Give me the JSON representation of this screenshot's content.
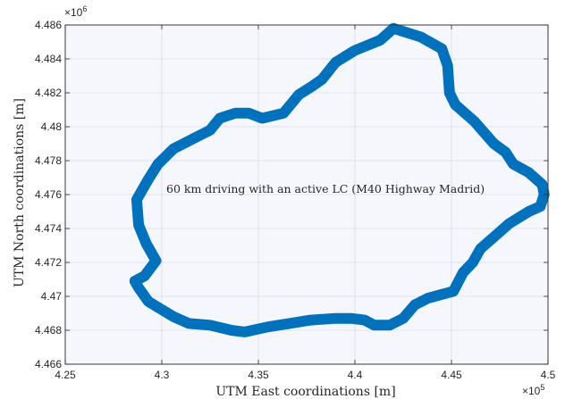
{
  "chart_data": {
    "type": "line",
    "title": "",
    "xlabel": "UTM East coordinations [m]",
    "ylabel": "UTM North coordinations [m]",
    "xlim": [
      425000,
      450000
    ],
    "ylim": [
      4466000,
      4486000
    ],
    "x_ticks": [
      425000,
      430000,
      435000,
      440000,
      445000,
      450000
    ],
    "y_ticks": [
      4466000,
      4468000,
      4470000,
      4472000,
      4474000,
      4476000,
      4478000,
      4480000,
      4482000,
      4484000,
      4486000
    ],
    "x_tick_labels": [
      "4.25",
      "4.3",
      "4.35",
      "4.4",
      "4.45",
      "4.5"
    ],
    "y_tick_labels": [
      "4.466",
      "4.468",
      "4.47",
      "4.472",
      "4.474",
      "4.476",
      "4.478",
      "4.48",
      "4.482",
      "4.484",
      "4.486"
    ],
    "x_exponent": {
      "base": "×10",
      "power": "5"
    },
    "y_exponent": {
      "base": "×10",
      "power": "6"
    },
    "grid": true,
    "annotation": "60 km driving with an active LC (M40 Highway Madrid)",
    "colors": {
      "line": "#0072BD",
      "plot_background": "#F5F7FC",
      "grid": "#DDDDDD",
      "axes": "#262626"
    },
    "series": [
      {
        "x": [
          442000,
          443400,
          444500,
          444800,
          444900,
          445200,
          446200,
          447200,
          447800,
          448200,
          449000,
          449700,
          449800,
          449600,
          449000,
          448000,
          447200,
          446500,
          446100,
          445600,
          445100,
          443800,
          443100,
          442500,
          441800,
          441000,
          440500,
          439800,
          439000,
          437700,
          436600,
          435500,
          434300,
          433600,
          432500,
          431400,
          430600,
          429300,
          428800,
          428600,
          429100,
          429700,
          429200,
          428800,
          428700,
          429300,
          429800,
          430600,
          431800,
          432500,
          433000,
          433800,
          434500,
          435200,
          436300,
          437100,
          437800,
          438300,
          439000,
          440000,
          441300,
          442000
        ],
        "y": [
          4485800,
          4485300,
          4484600,
          4483600,
          4482000,
          4481300,
          4480300,
          4479000,
          4478500,
          4477800,
          4477300,
          4476600,
          4476000,
          4475300,
          4475000,
          4474300,
          4473500,
          4472800,
          4472000,
          4471400,
          4470300,
          4469900,
          4469500,
          4468700,
          4468300,
          4468300,
          4468600,
          4468700,
          4468700,
          4468600,
          4468400,
          4468200,
          4467900,
          4468000,
          4468300,
          4468400,
          4468800,
          4469700,
          4470500,
          4470900,
          4471200,
          4472100,
          4473100,
          4474200,
          4475700,
          4476900,
          4477800,
          4478700,
          4479400,
          4479800,
          4480500,
          4480800,
          4480800,
          4480500,
          4480800,
          4481900,
          4482400,
          4482800,
          4483800,
          4484500,
          4485100,
          4485800
        ]
      }
    ]
  }
}
